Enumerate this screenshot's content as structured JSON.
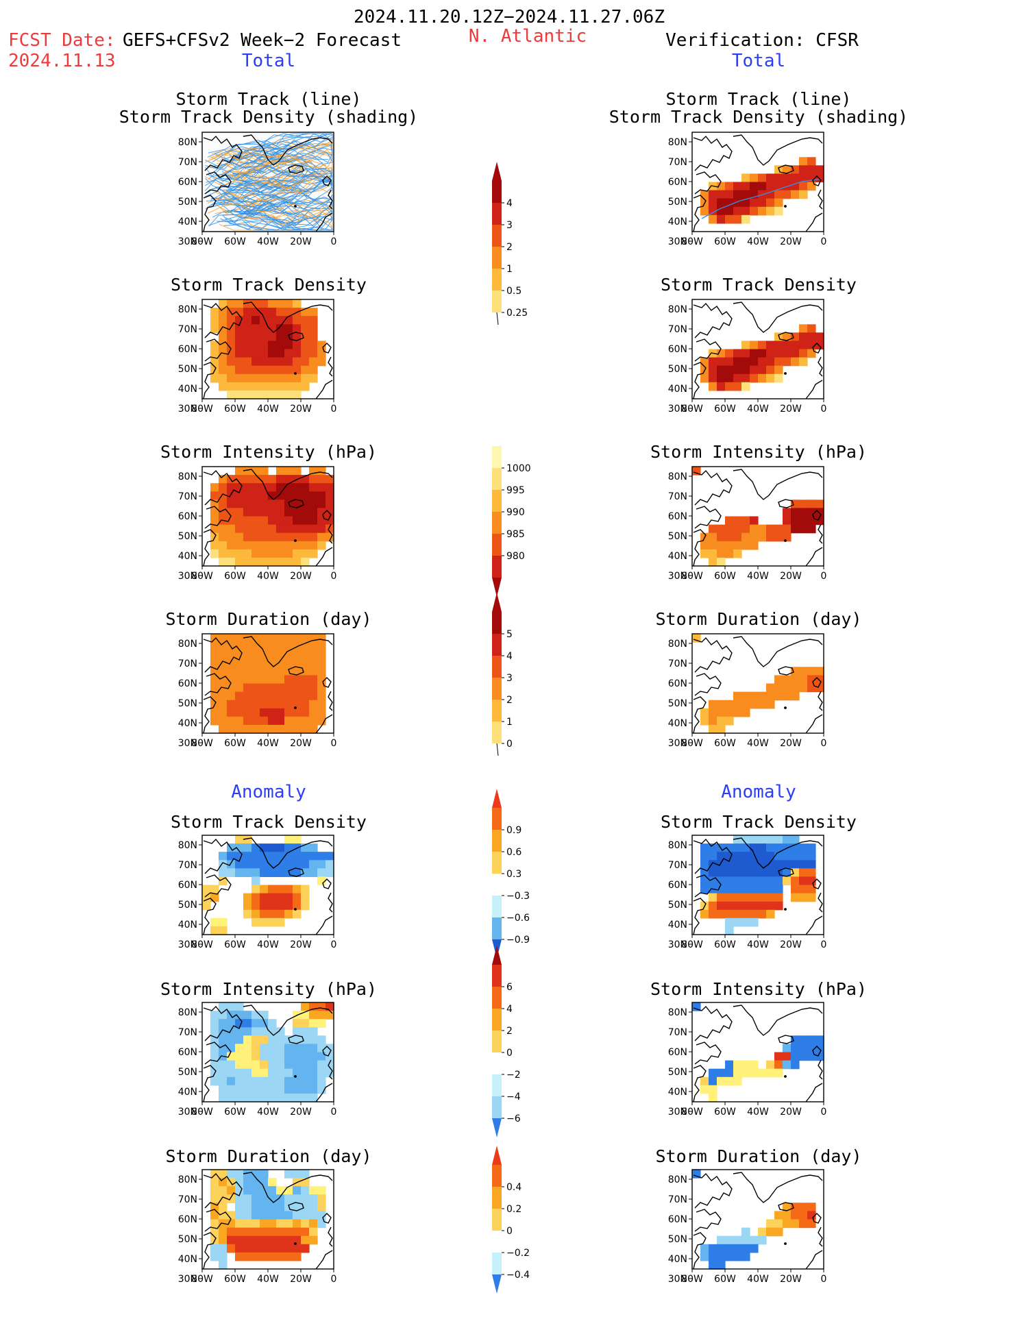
{
  "header": {
    "period": "2024.11.20.12Z−2024.11.27.06Z",
    "fcst_date_label": "FCST Date:",
    "fcst_date_value": "2024.11.13",
    "model": "GEFS+CFSv2 Week−2 Forecast",
    "region": "N. Atlantic",
    "verification": "Verification: CFSR",
    "left_section": "Total",
    "right_section": "Total",
    "left_anom_section": "Anomaly",
    "right_anom_section": "Anomaly"
  },
  "panel_titles": {
    "track_line": "Storm Track (line)",
    "track_density_shading": "Storm Track Density (shading)",
    "track_density": "Storm Track Density",
    "intensity": "Storm Intensity (hPa)",
    "duration": "Storm Duration (day)"
  },
  "axes": {
    "lat_ticks": [
      "80N",
      "70N",
      "60N",
      "50N",
      "40N",
      "30N"
    ],
    "lon_ticks": [
      "80W",
      "60W",
      "40W",
      "20W",
      "0"
    ]
  },
  "colorbars": {
    "density": [
      "0.25",
      "0.5",
      "1",
      "2",
      "3",
      "4"
    ],
    "intensity": [
      "1000",
      "995",
      "990",
      "985",
      "980"
    ],
    "duration": [
      "0",
      "1",
      "2",
      "3",
      "4",
      "5"
    ],
    "density_anom": [
      "−0.9",
      "−0.6",
      "−0.3",
      "0.3",
      "0.6",
      "0.9"
    ],
    "intensity_anom": [
      "−6",
      "−4",
      "−2",
      "0",
      "2",
      "4",
      "6"
    ],
    "duration_anom": [
      "−0.4",
      "−0.2",
      "0",
      "0.2",
      "0.4"
    ]
  },
  "colors": {
    "title_red": "#ee3a3a",
    "section_blue": "#2b3df5",
    "track_line": "#1e90ff",
    "warm": [
      "#fff6b0",
      "#fde07a",
      "#fcb93c",
      "#f88c1f",
      "#ec5517",
      "#cf2317",
      "#a30b0b"
    ],
    "cool": [
      "#c6f0fa",
      "#9bd7f5",
      "#64b4f0",
      "#2f7de6",
      "#1e5ad0"
    ]
  }
}
